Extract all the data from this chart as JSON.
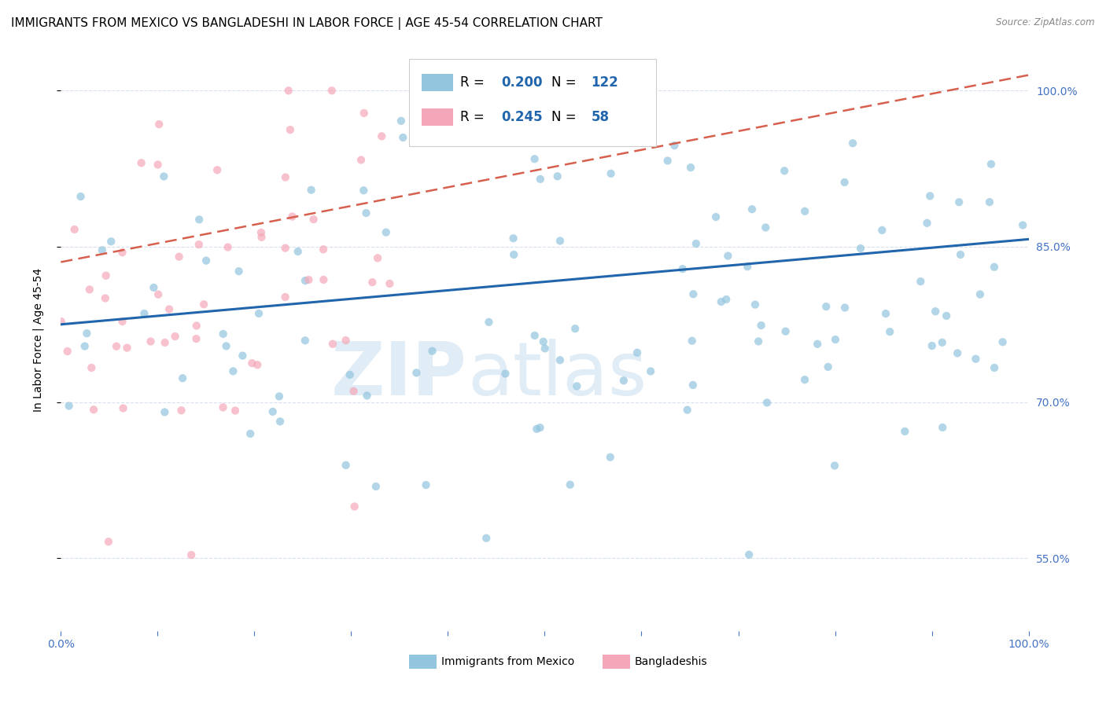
{
  "title": "IMMIGRANTS FROM MEXICO VS BANGLADESHI IN LABOR FORCE | AGE 45-54 CORRELATION CHART",
  "source": "Source: ZipAtlas.com",
  "ylabel": "In Labor Force | Age 45-54",
  "xlim": [
    0.0,
    1.0
  ],
  "ylim": [
    0.48,
    1.04
  ],
  "yticks": [
    0.55,
    0.7,
    0.85,
    1.0
  ],
  "ytick_labels": [
    "55.0%",
    "70.0%",
    "85.0%",
    "100.0%"
  ],
  "blue_color": "#92c5de",
  "pink_color": "#f4a7b9",
  "blue_line_color": "#2166ac",
  "pink_line_color": "#d6604d",
  "blue_R": 0.2,
  "blue_N": 122,
  "pink_R": 0.245,
  "pink_N": 58,
  "legend_label_blue": "Immigrants from Mexico",
  "legend_label_pink": "Bangladeshis",
  "background_color": "#ffffff",
  "scatter_alpha": 0.7,
  "scatter_size": 55,
  "blue_trend_y_start": 0.775,
  "blue_trend_y_end": 0.857,
  "pink_trend_y_start": 0.835,
  "pink_trend_y_end": 1.015,
  "tick_color": "#4472c4",
  "grid_color": "#d8dff0",
  "title_fontsize": 11,
  "axis_label_fontsize": 10,
  "tick_fontsize": 10,
  "legend_fontsize": 12
}
